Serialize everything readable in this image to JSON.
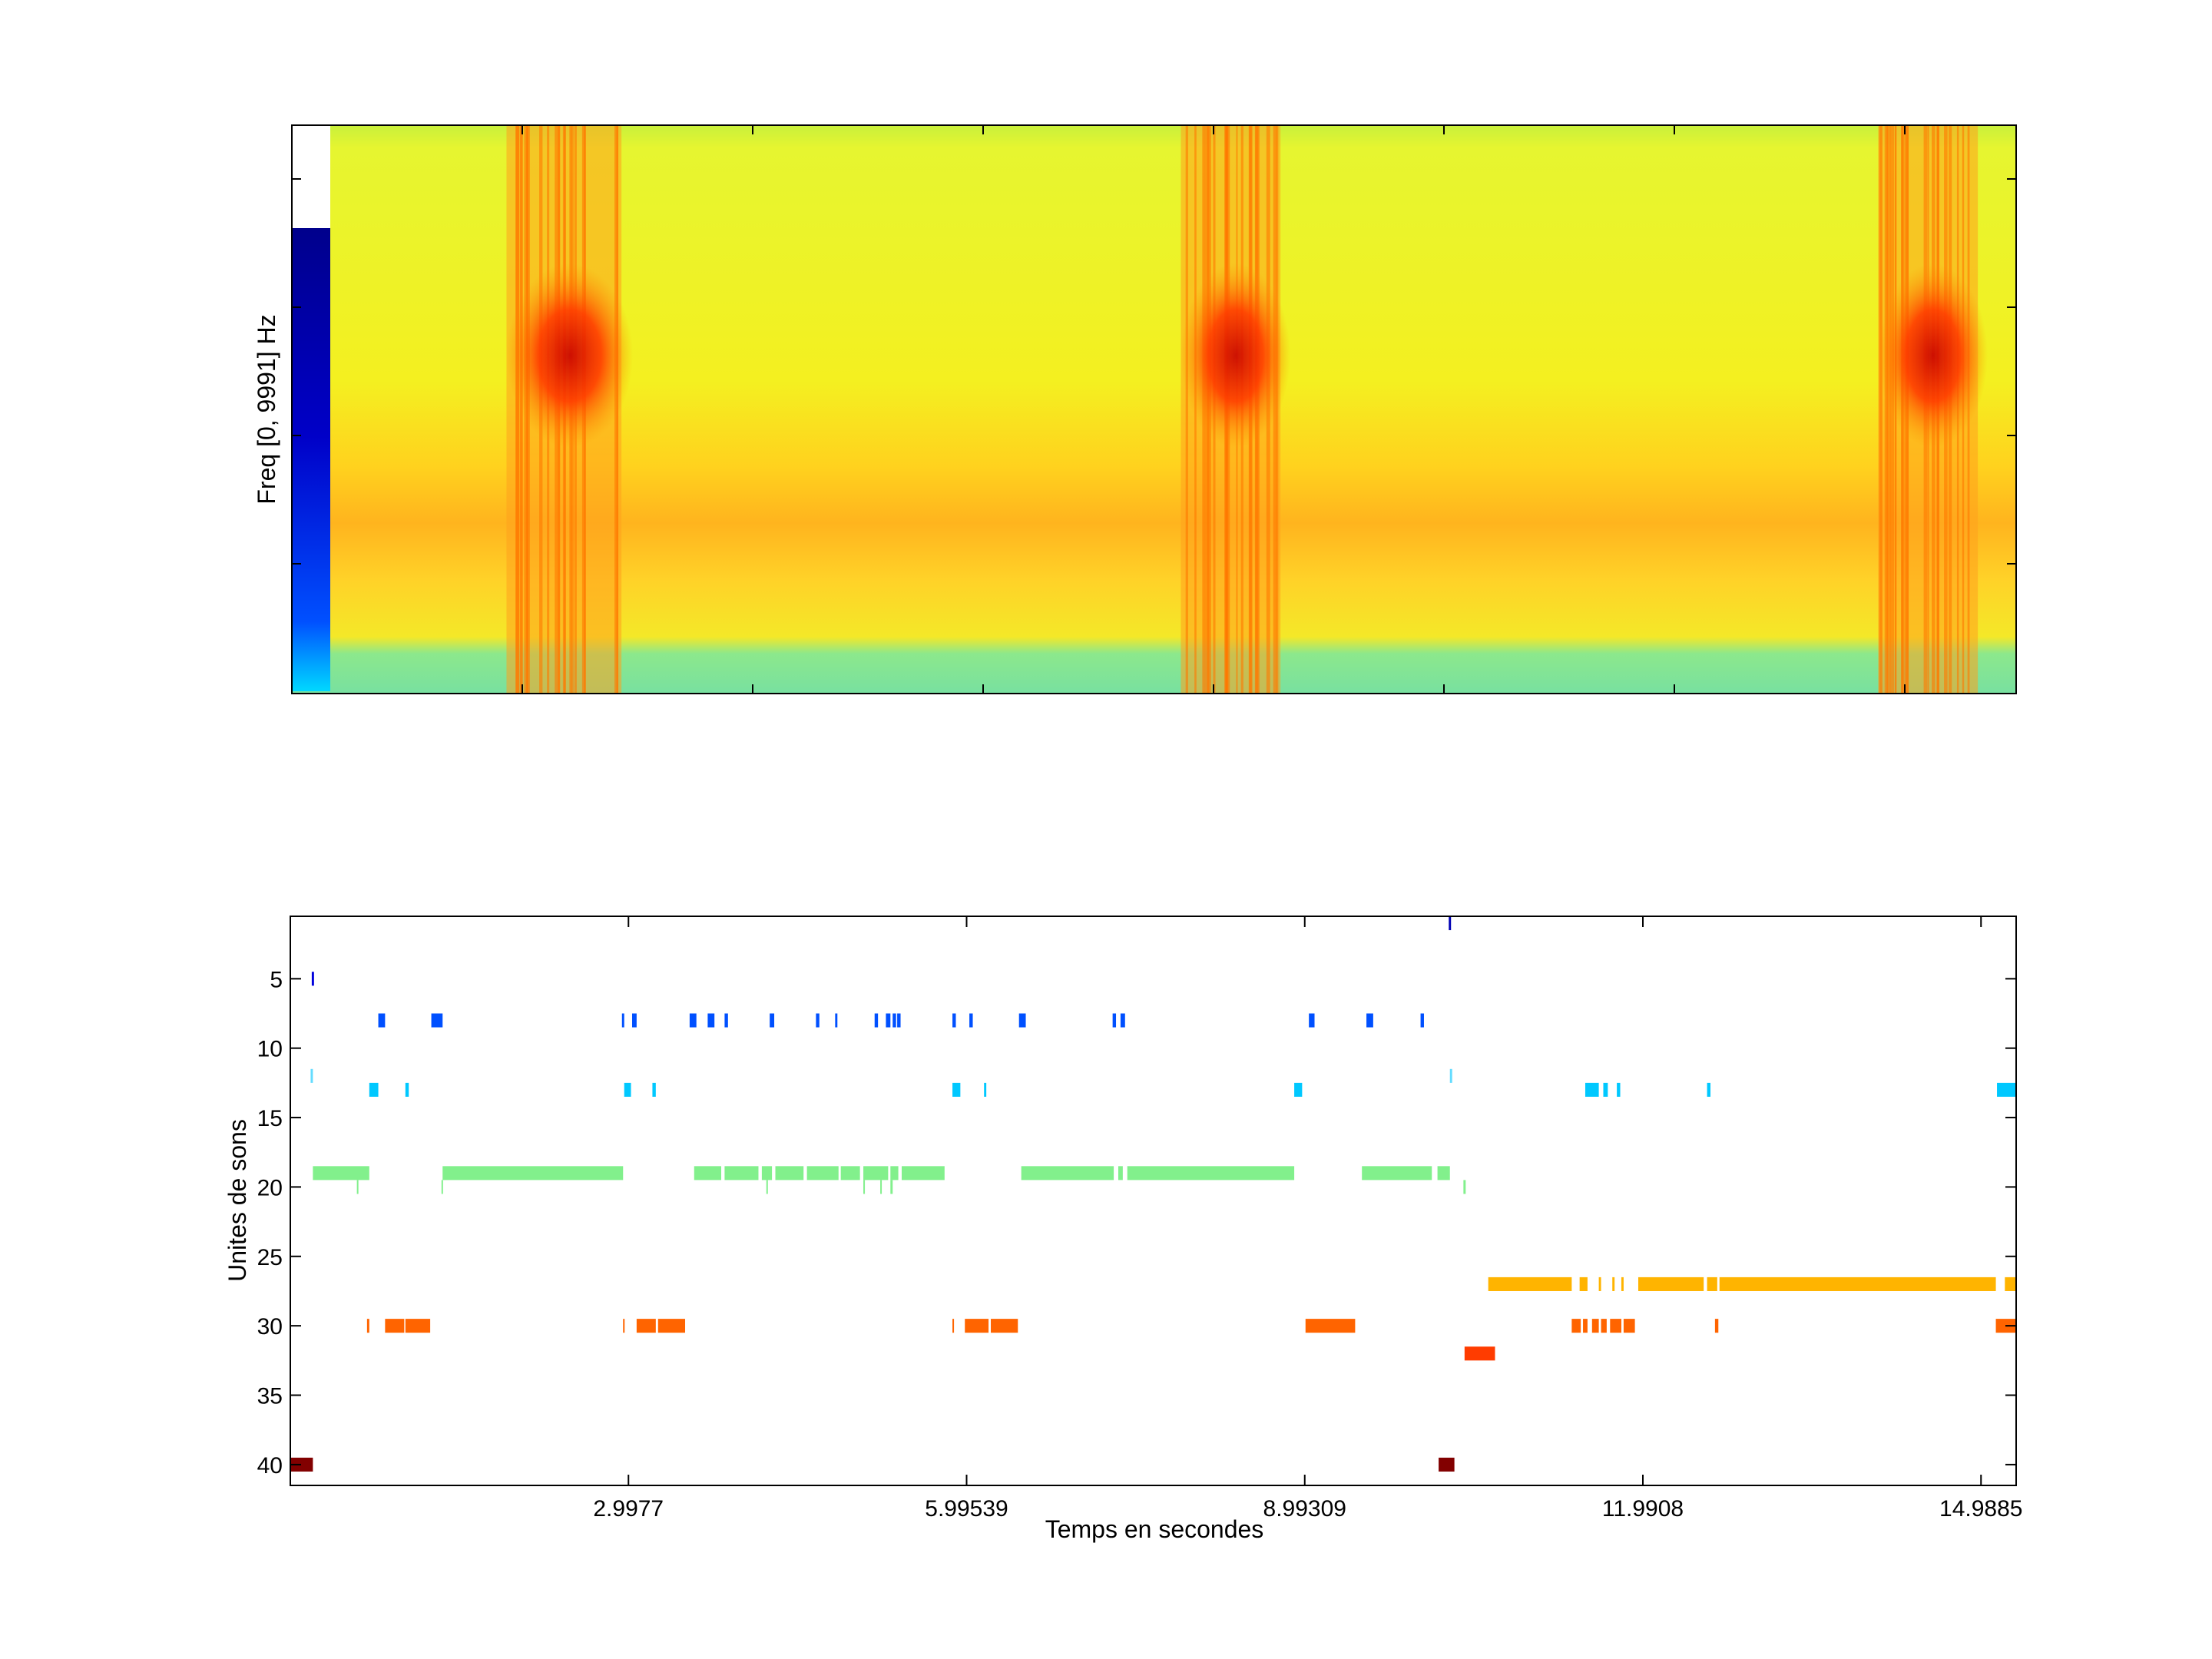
{
  "chart_data": [
    {
      "type": "heatmap",
      "title": "",
      "ylabel": "Freq [0, 9991] Hz",
      "xlabel": "",
      "ylim": [
        0,
        9991
      ],
      "colormap": "jet",
      "colorbar_strip": {
        "colors": [
          "#00d8ff",
          "#0050ff",
          "#0000c8",
          "#00008c"
        ]
      },
      "loud_call_bursts_s": [
        [
          2.3,
          3.8
        ],
        [
          11.1,
          12.4
        ],
        [
          20.2,
          21.5
        ]
      ],
      "x_range_s": [
        0,
        22.0
      ]
    },
    {
      "type": "scatter",
      "title": "",
      "xlabel": "Temps en secondes",
      "ylabel": "Unites de sons",
      "xlim": [
        0,
        15.3
      ],
      "ylim": [
        0.5,
        41.5
      ],
      "ytick_labels": [
        "5",
        "10",
        "15",
        "20",
        "25",
        "30",
        "35",
        "40"
      ],
      "yticks": [
        5,
        10,
        15,
        20,
        25,
        30,
        35,
        40
      ],
      "xtick_labels": [
        "2.9977",
        "5.99539",
        "8.99309",
        "11.9908",
        "14.9885"
      ],
      "xticks": [
        2.9977,
        5.99539,
        8.99309,
        11.9908,
        14.9885
      ],
      "series": [
        {
          "unit": 1,
          "color": "#0000b4",
          "segments": [
            [
              10.27,
              10.29
            ]
          ]
        },
        {
          "unit": 5,
          "color": "#0000dc",
          "segments": [
            [
              0.19,
              0.21
            ]
          ]
        },
        {
          "unit": 8,
          "color": "#0050ff",
          "segments": [
            [
              0.78,
              0.84
            ],
            [
              1.25,
              1.35
            ],
            [
              2.94,
              2.96
            ],
            [
              3.03,
              3.07
            ],
            [
              3.54,
              3.6
            ],
            [
              3.7,
              3.76
            ],
            [
              3.85,
              3.88
            ],
            [
              4.25,
              4.29
            ],
            [
              4.66,
              4.69
            ],
            [
              4.83,
              4.85
            ],
            [
              5.18,
              5.21
            ],
            [
              5.28,
              5.32
            ],
            [
              5.34,
              5.37
            ],
            [
              5.38,
              5.41
            ],
            [
              5.87,
              5.9
            ],
            [
              6.02,
              6.05
            ],
            [
              6.46,
              6.52
            ],
            [
              7.29,
              7.32
            ],
            [
              7.36,
              7.4
            ],
            [
              9.03,
              9.08
            ],
            [
              9.54,
              9.6
            ],
            [
              10.02,
              10.05
            ]
          ]
        },
        {
          "unit": 12,
          "color": "#64dcff",
          "segments": [
            [
              0.18,
              0.2
            ],
            [
              10.28,
              10.3
            ]
          ]
        },
        {
          "unit": 13,
          "color": "#00c8ff",
          "segments": [
            [
              0.7,
              0.78
            ],
            [
              1.02,
              1.05
            ],
            [
              2.96,
              3.02
            ],
            [
              3.21,
              3.24
            ],
            [
              5.87,
              5.94
            ],
            [
              6.15,
              6.17
            ],
            [
              8.9,
              8.97
            ],
            [
              11.48,
              11.6
            ],
            [
              11.64,
              11.68
            ],
            [
              11.76,
              11.79
            ],
            [
              12.56,
              12.59
            ],
            [
              15.13,
              15.3
            ]
          ]
        },
        {
          "unit": 19,
          "color": "#82f08c",
          "segments": [
            [
              0.2,
              0.7
            ],
            [
              1.35,
              2.95
            ],
            [
              3.58,
              3.82
            ],
            [
              3.85,
              4.15
            ],
            [
              4.18,
              4.27
            ],
            [
              4.3,
              4.55
            ],
            [
              4.58,
              4.86
            ],
            [
              4.88,
              5.05
            ],
            [
              5.08,
              5.3
            ],
            [
              5.32,
              5.39
            ],
            [
              5.42,
              5.8
            ],
            [
              6.48,
              7.3
            ],
            [
              7.34,
              7.38
            ],
            [
              7.42,
              8.9
            ],
            [
              9.5,
              10.12
            ],
            [
              10.17,
              10.28
            ]
          ]
        },
        {
          "unit": 20,
          "color": "#82f08c",
          "segments": [
            [
              0.59,
              0.6
            ],
            [
              1.34,
              1.35
            ],
            [
              4.22,
              4.23
            ],
            [
              5.08,
              5.09
            ],
            [
              5.23,
              5.24
            ],
            [
              5.32,
              5.34
            ],
            [
              10.4,
              10.42
            ]
          ]
        },
        {
          "unit": 27,
          "color": "#ffb400",
          "segments": [
            [
              10.62,
              11.36
            ],
            [
              11.43,
              11.5
            ],
            [
              11.6,
              11.62
            ],
            [
              11.72,
              11.74
            ],
            [
              11.8,
              11.82
            ],
            [
              11.95,
              12.53
            ],
            [
              12.56,
              12.65
            ],
            [
              12.67,
              15.12
            ],
            [
              15.2,
              15.3
            ]
          ]
        },
        {
          "unit": 30,
          "color": "#ff6400",
          "segments": [
            [
              0.68,
              0.7
            ],
            [
              0.84,
              1.01
            ],
            [
              1.02,
              1.24
            ],
            [
              2.95,
              2.96
            ],
            [
              3.07,
              3.24
            ],
            [
              3.26,
              3.5
            ],
            [
              5.87,
              5.88
            ],
            [
              5.98,
              6.19
            ],
            [
              6.21,
              6.45
            ],
            [
              9.0,
              9.44
            ],
            [
              11.36,
              11.44
            ],
            [
              11.46,
              11.5
            ],
            [
              11.54,
              11.6
            ],
            [
              11.62,
              11.67
            ],
            [
              11.7,
              11.8
            ],
            [
              11.82,
              11.92
            ],
            [
              12.63,
              12.66
            ],
            [
              15.12,
              15.3
            ]
          ]
        },
        {
          "unit": 32,
          "color": "#ff3c00",
          "segments": [
            [
              10.41,
              10.68
            ]
          ]
        },
        {
          "unit": 40,
          "color": "#820000",
          "segments": [
            [
              0.0,
              0.2
            ],
            [
              10.18,
              10.32
            ]
          ]
        }
      ]
    }
  ]
}
